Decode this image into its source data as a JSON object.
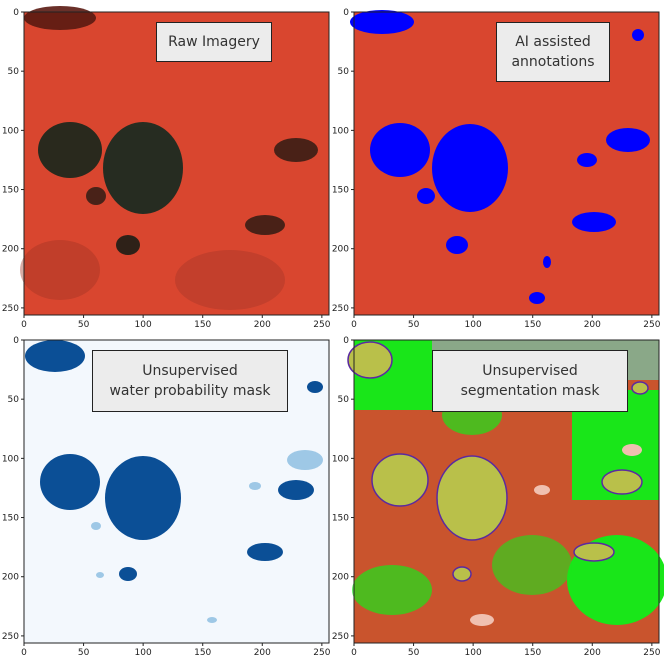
{
  "panels": [
    {
      "id": "raw",
      "caption": "Raw Imagery"
    },
    {
      "id": "ai",
      "caption": "AI assisted\nannotations"
    },
    {
      "id": "prob",
      "caption": "Unsupervised\nwater probability mask"
    },
    {
      "id": "seg",
      "caption": "Unsupervised\nsegmentation mask"
    }
  ],
  "axes": {
    "x_ticks": [
      "0",
      "50",
      "100",
      "150",
      "200",
      "250"
    ],
    "y_ticks": [
      "0",
      "50",
      "100",
      "150",
      "200",
      "250"
    ]
  },
  "colors": {
    "raw_bg": "#d9462f",
    "raw_dark": "#15281f",
    "ai_water": "#0000ff",
    "prob_bg": "#f3f8fd",
    "prob_water": "#0b4f96",
    "prob_light": "#9ec8e6",
    "seg_bg": "#c9542d",
    "seg_green": "#19e619",
    "seg_olive": "#b9c04a",
    "seg_pink": "#f0c0b0",
    "seg_purple": "#5a2aa0",
    "seg_gray": "#8aa888"
  }
}
